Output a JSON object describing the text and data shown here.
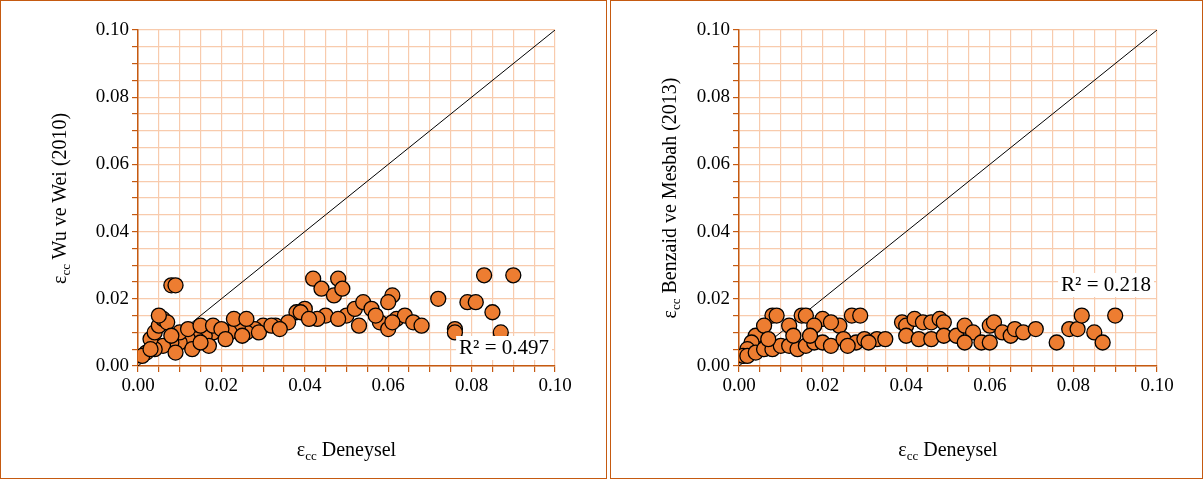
{
  "chart_data": [
    {
      "type": "scatter",
      "xlabel": "ε$_{cc}$ Deneysel",
      "ylabel": "ε$_{cc}$ Wu ve Wei (2010)",
      "xlim": [
        0,
        0.1
      ],
      "ylim": [
        0,
        0.1
      ],
      "xticks": [
        {
          "value": 0,
          "label": "0.00"
        },
        {
          "value": 0.005,
          "label": null
        },
        {
          "value": 0.01,
          "label": null
        },
        {
          "value": 0.015,
          "label": null
        },
        {
          "value": 0.02,
          "label": "0.02"
        },
        {
          "value": 0.025,
          "label": null
        },
        {
          "value": 0.03,
          "label": null
        },
        {
          "value": 0.035,
          "label": null
        },
        {
          "value": 0.04,
          "label": "0.04"
        },
        {
          "value": 0.045,
          "label": null
        },
        {
          "value": 0.05,
          "label": null
        },
        {
          "value": 0.055,
          "label": null
        },
        {
          "value": 0.06,
          "label": "0.06"
        },
        {
          "value": 0.065,
          "label": null
        },
        {
          "value": 0.07,
          "label": null
        },
        {
          "value": 0.075,
          "label": null
        },
        {
          "value": 0.08,
          "label": "0.08"
        },
        {
          "value": 0.085,
          "label": null
        },
        {
          "value": 0.09,
          "label": null
        },
        {
          "value": 0.095,
          "label": null
        },
        {
          "value": 0.1,
          "label": "0.10"
        }
      ],
      "yticks": [
        {
          "value": 0,
          "label": "0.00"
        },
        {
          "value": 0.005,
          "label": null
        },
        {
          "value": 0.01,
          "label": null
        },
        {
          "value": 0.015,
          "label": null
        },
        {
          "value": 0.02,
          "label": "0.02"
        },
        {
          "value": 0.025,
          "label": null
        },
        {
          "value": 0.03,
          "label": null
        },
        {
          "value": 0.035,
          "label": null
        },
        {
          "value": 0.04,
          "label": "0.04"
        },
        {
          "value": 0.045,
          "label": null
        },
        {
          "value": 0.05,
          "label": null
        },
        {
          "value": 0.055,
          "label": null
        },
        {
          "value": 0.06,
          "label": "0.06"
        },
        {
          "value": 0.065,
          "label": null
        },
        {
          "value": 0.07,
          "label": null
        },
        {
          "value": 0.075,
          "label": null
        },
        {
          "value": 0.08,
          "label": "0.08"
        },
        {
          "value": 0.085,
          "label": null
        },
        {
          "value": 0.09,
          "label": null
        },
        {
          "value": 0.095,
          "label": null
        },
        {
          "value": 0.1,
          "label": "0.10"
        }
      ],
      "grid": true,
      "legend": false,
      "marker": "circle",
      "annotations": [
        "R² = 0.497"
      ],
      "series": [
        {
          "type": "scatter",
          "color": "#ed7d31",
          "x": [
            0.008,
            0.009,
            0.042,
            0.048,
            0.044,
            0.047,
            0.049,
            0.083,
            0.09,
            0.061,
            0.06,
            0.072,
            0.079,
            0.081,
            0.085,
            0.087,
            0.076,
            0.076,
            0.04,
            0.038,
            0.045,
            0.05,
            0.052,
            0.054,
            0.056,
            0.058,
            0.062,
            0.064,
            0.066,
            0.068,
            0.053,
            0.048,
            0.043,
            0.036,
            0.033,
            0.03,
            0.028,
            0.026,
            0.024,
            0.022,
            0.018,
            0.016,
            0.014,
            0.012,
            0.01,
            0.008,
            0.006,
            0.004,
            0.002,
            0.001,
            0.003,
            0.004,
            0.005,
            0.006,
            0.007,
            0.005,
            0.01,
            0.012,
            0.015,
            0.018,
            0.023,
            0.026,
            0.017,
            0.013,
            0.009,
            0.02,
            0.008,
            0.003,
            0.015,
            0.021,
            0.025,
            0.029,
            0.032,
            0.034,
            0.039,
            0.041,
            0.06,
            0.061,
            0.057
          ],
          "values": [
            0.024,
            0.024,
            0.026,
            0.026,
            0.023,
            0.021,
            0.023,
            0.027,
            0.027,
            0.021,
            0.019,
            0.02,
            0.019,
            0.019,
            0.016,
            0.01,
            0.011,
            0.01,
            0.017,
            0.016,
            0.015,
            0.015,
            0.017,
            0.019,
            0.017,
            0.013,
            0.014,
            0.015,
            0.013,
            0.012,
            0.012,
            0.014,
            0.014,
            0.013,
            0.012,
            0.012,
            0.011,
            0.01,
            0.012,
            0.01,
            0.01,
            0.009,
            0.008,
            0.008,
            0.007,
            0.007,
            0.006,
            0.005,
            0.004,
            0.003,
            0.008,
            0.01,
            0.012,
            0.014,
            0.013,
            0.015,
            0.01,
            0.011,
            0.012,
            0.012,
            0.014,
            0.014,
            0.006,
            0.005,
            0.004,
            0.011,
            0.009,
            0.005,
            0.007,
            0.008,
            0.009,
            0.01,
            0.012,
            0.011,
            0.016,
            0.014,
            0.011,
            0.013,
            0.015
          ]
        },
        {
          "type": "line",
          "color": "#000000",
          "marker": "none",
          "x": [
            0,
            0.1
          ],
          "values": [
            0,
            0.1
          ]
        }
      ]
    },
    {
      "type": "scatter",
      "xlabel": "ε$_{cc}$ Deneysel",
      "ylabel": "ε$_{cc}$ Benzaid ve Mesbah (2013)",
      "xlim": [
        0,
        0.1
      ],
      "ylim": [
        0,
        0.1
      ],
      "xticks": [
        {
          "value": 0,
          "label": "0.00"
        },
        {
          "value": 0.005,
          "label": null
        },
        {
          "value": 0.01,
          "label": null
        },
        {
          "value": 0.015,
          "label": null
        },
        {
          "value": 0.02,
          "label": "0.02"
        },
        {
          "value": 0.025,
          "label": null
        },
        {
          "value": 0.03,
          "label": null
        },
        {
          "value": 0.035,
          "label": null
        },
        {
          "value": 0.04,
          "label": "0.04"
        },
        {
          "value": 0.045,
          "label": null
        },
        {
          "value": 0.05,
          "label": null
        },
        {
          "value": 0.055,
          "label": null
        },
        {
          "value": 0.06,
          "label": "0.06"
        },
        {
          "value": 0.065,
          "label": null
        },
        {
          "value": 0.07,
          "label": null
        },
        {
          "value": 0.075,
          "label": null
        },
        {
          "value": 0.08,
          "label": "0.08"
        },
        {
          "value": 0.085,
          "label": null
        },
        {
          "value": 0.09,
          "label": null
        },
        {
          "value": 0.095,
          "label": null
        },
        {
          "value": 0.1,
          "label": "0.10"
        }
      ],
      "yticks": [
        {
          "value": 0,
          "label": "0.00"
        },
        {
          "value": 0.005,
          "label": null
        },
        {
          "value": 0.01,
          "label": null
        },
        {
          "value": 0.015,
          "label": null
        },
        {
          "value": 0.02,
          "label": "0.02"
        },
        {
          "value": 0.025,
          "label": null
        },
        {
          "value": 0.03,
          "label": null
        },
        {
          "value": 0.035,
          "label": null
        },
        {
          "value": 0.04,
          "label": "0.04"
        },
        {
          "value": 0.045,
          "label": null
        },
        {
          "value": 0.05,
          "label": null
        },
        {
          "value": 0.055,
          "label": null
        },
        {
          "value": 0.06,
          "label": "0.06"
        },
        {
          "value": 0.065,
          "label": null
        },
        {
          "value": 0.07,
          "label": null
        },
        {
          "value": 0.075,
          "label": null
        },
        {
          "value": 0.08,
          "label": "0.08"
        },
        {
          "value": 0.085,
          "label": null
        },
        {
          "value": 0.09,
          "label": null
        },
        {
          "value": 0.095,
          "label": null
        },
        {
          "value": 0.1,
          "label": "0.10"
        }
      ],
      "grid": true,
      "legend": false,
      "marker": "circle",
      "annotations": [
        "R² = 0.218"
      ],
      "series": [
        {
          "type": "scatter",
          "color": "#ed7d31",
          "x": [
            0.008,
            0.009,
            0.015,
            0.016,
            0.02,
            0.024,
            0.027,
            0.029,
            0.022,
            0.018,
            0.012,
            0.004,
            0.006,
            0.003,
            0.002,
            0.001,
            0.002,
            0.004,
            0.006,
            0.008,
            0.01,
            0.012,
            0.014,
            0.016,
            0.018,
            0.02,
            0.022,
            0.025,
            0.028,
            0.03,
            0.033,
            0.035,
            0.039,
            0.04,
            0.042,
            0.044,
            0.046,
            0.048,
            0.049,
            0.04,
            0.043,
            0.046,
            0.049,
            0.052,
            0.054,
            0.056,
            0.058,
            0.06,
            0.061,
            0.063,
            0.065,
            0.066,
            0.068,
            0.071,
            0.06,
            0.054,
            0.076,
            0.079,
            0.081,
            0.082,
            0.085,
            0.087,
            0.09,
            0.013,
            0.017,
            0.007,
            0.026,
            0.031
          ],
          "values": [
            0.015,
            0.015,
            0.015,
            0.015,
            0.014,
            0.012,
            0.015,
            0.015,
            0.013,
            0.012,
            0.012,
            0.009,
            0.012,
            0.007,
            0.005,
            0.003,
            0.003,
            0.004,
            0.005,
            0.005,
            0.006,
            0.006,
            0.005,
            0.006,
            0.007,
            0.007,
            0.006,
            0.008,
            0.007,
            0.008,
            0.008,
            0.008,
            0.013,
            0.012,
            0.014,
            0.013,
            0.013,
            0.014,
            0.013,
            0.009,
            0.008,
            0.008,
            0.009,
            0.009,
            0.012,
            0.01,
            0.007,
            0.012,
            0.013,
            0.01,
            0.009,
            0.011,
            0.01,
            0.011,
            0.007,
            0.007,
            0.007,
            0.011,
            0.011,
            0.015,
            0.01,
            0.007,
            0.015,
            0.009,
            0.009,
            0.008,
            0.006,
            0.007
          ]
        },
        {
          "type": "line",
          "color": "#000000",
          "marker": "none",
          "x": [
            0,
            0.1
          ],
          "values": [
            0,
            0.1
          ]
        }
      ]
    }
  ]
}
